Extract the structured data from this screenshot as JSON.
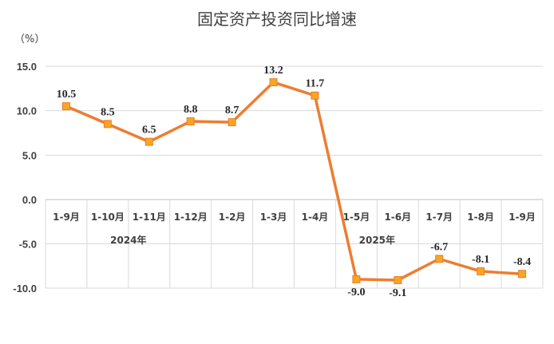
{
  "chart_data": {
    "type": "line",
    "title": "固定资产投资同比增速",
    "unit_label": "（%）",
    "categories": [
      "1-9月",
      "1-10月",
      "1-11月",
      "1-12月",
      "1-2月",
      "1-3月",
      "1-4月",
      "1-5月",
      "1-6月",
      "1-7月",
      "1-8月",
      "1-9月"
    ],
    "year_labels": [
      {
        "text": "2024年",
        "start_index": 0,
        "end_index": 3
      },
      {
        "text": "2025年",
        "start_index": 4,
        "end_index": 11
      }
    ],
    "series": [
      {
        "values": [
          10.5,
          8.5,
          6.5,
          8.8,
          8.7,
          13.2,
          11.7,
          -9.0,
          -9.1,
          -6.7,
          -8.1,
          -8.4
        ],
        "data_labels": [
          "10.5",
          "8.5",
          "6.5",
          "8.8",
          "8.7",
          "13.2",
          "11.7",
          "-9.0",
          "-9.1",
          "-6.7",
          "-8.1",
          "-8.4"
        ],
        "color": "#ed7d31",
        "marker_color": "#f5a623"
      }
    ],
    "yticks": [
      "15.0",
      "10.0",
      "5.0",
      "0.0",
      "-5.0",
      "-10.0"
    ],
    "ylim": [
      -10,
      15
    ],
    "grid": true,
    "legend": "none"
  }
}
